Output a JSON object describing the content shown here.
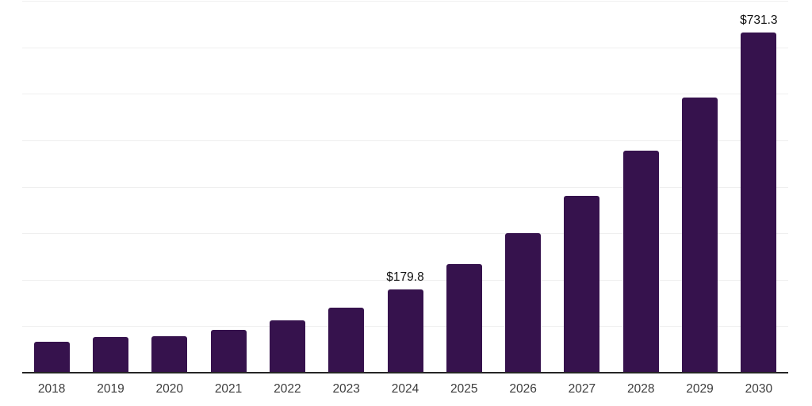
{
  "chart_data": {
    "type": "bar",
    "title": "",
    "categories": [
      "2018",
      "2019",
      "2020",
      "2021",
      "2022",
      "2023",
      "2024",
      "2025",
      "2026",
      "2027",
      "2028",
      "2029",
      "2030"
    ],
    "values": [
      67.0,
      76.0,
      79.3,
      92.0,
      112.9,
      139.5,
      179.8,
      233.9,
      299.6,
      380.5,
      476.8,
      592.5,
      731.3
    ],
    "data_labels": [
      "",
      "",
      "",
      "",
      "",
      "",
      "$179.8",
      "",
      "",
      "",
      "",
      "",
      "$731.3"
    ],
    "value_prefix": "$",
    "ylim": [
      0,
      800
    ],
    "grid_step": 100,
    "grid": true,
    "legend": false,
    "colors": {
      "bar": "#36124D",
      "axis_line": "#262626",
      "gridline": "#efefef",
      "tick_label": "#3d3d3d",
      "data_label": "#111111",
      "background": "#ffffff"
    }
  }
}
